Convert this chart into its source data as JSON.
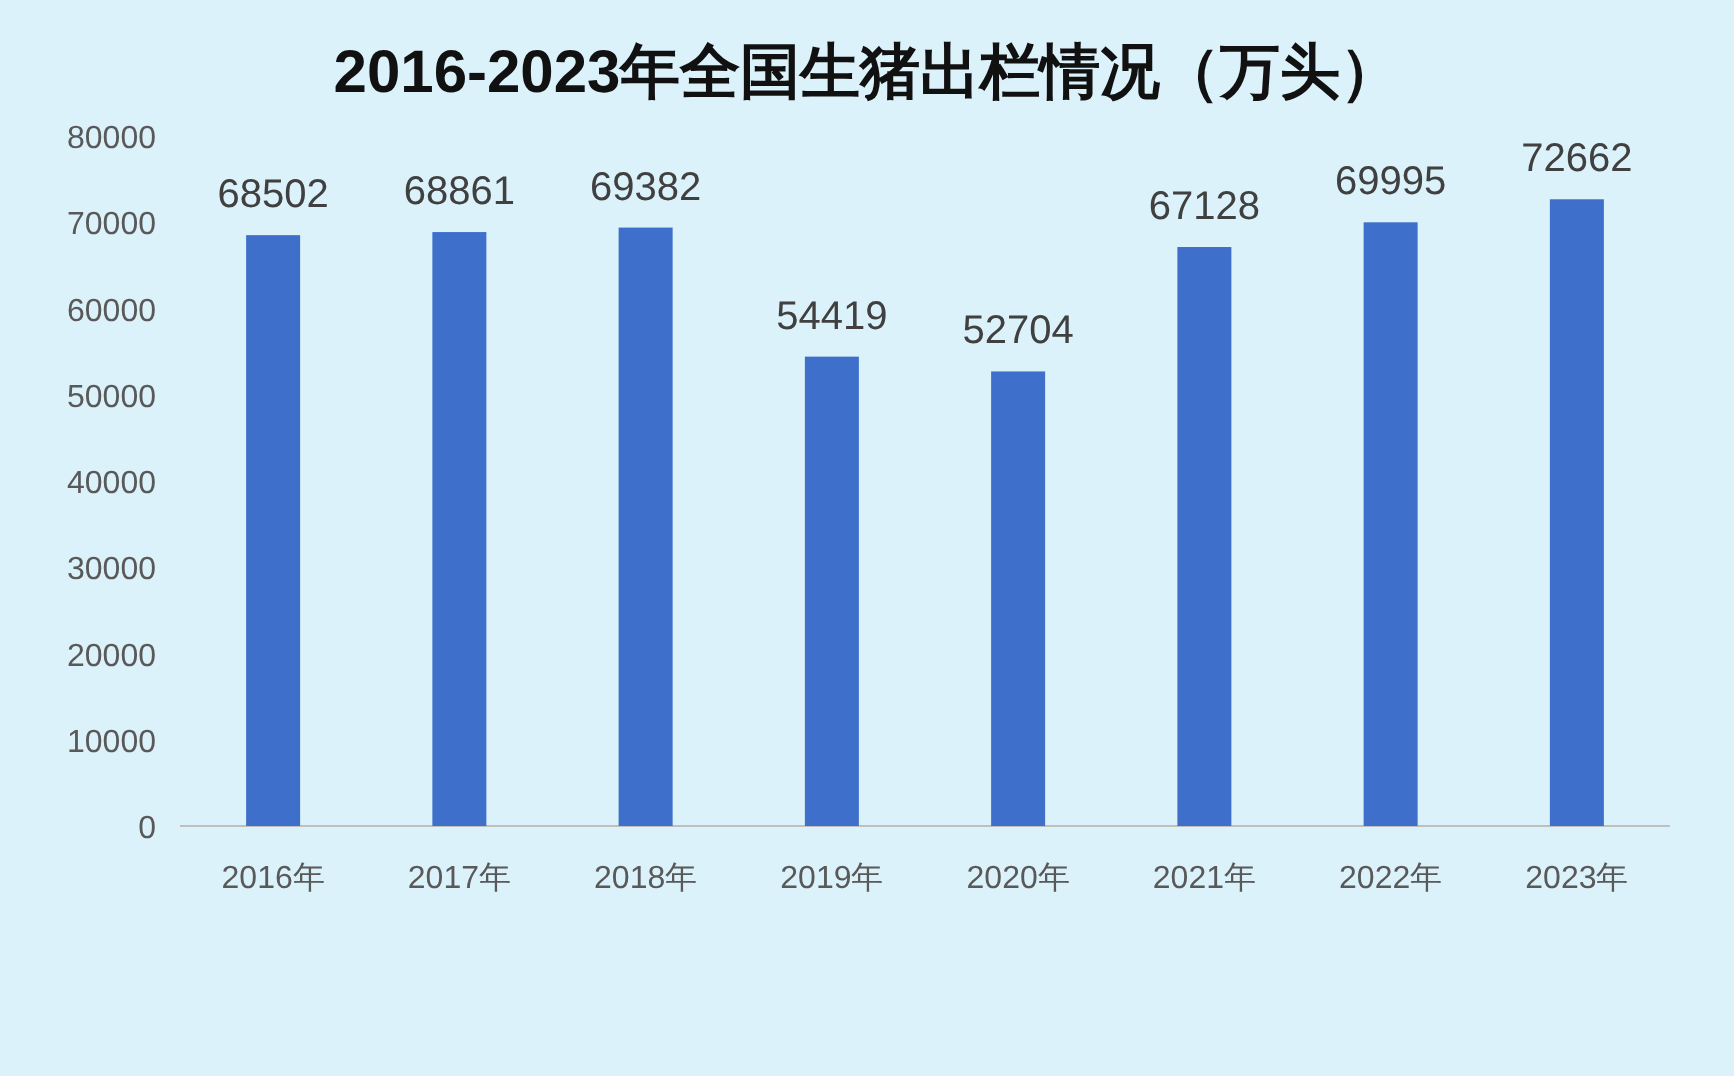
{
  "chart_data": {
    "type": "bar",
    "title": "2016-2023年全国生猪出栏情况（万头）",
    "categories": [
      "2016年",
      "2017年",
      "2018年",
      "2019年",
      "2020年",
      "2021年",
      "2022年",
      "2023年"
    ],
    "values": [
      68502,
      68861,
      69382,
      54419,
      52704,
      67128,
      69995,
      72662
    ],
    "color": "#3d6fcb",
    "ylim": [
      0,
      80000
    ],
    "yticks": [
      0,
      10000,
      20000,
      30000,
      40000,
      50000,
      60000,
      70000,
      80000
    ],
    "data_labels": true
  }
}
